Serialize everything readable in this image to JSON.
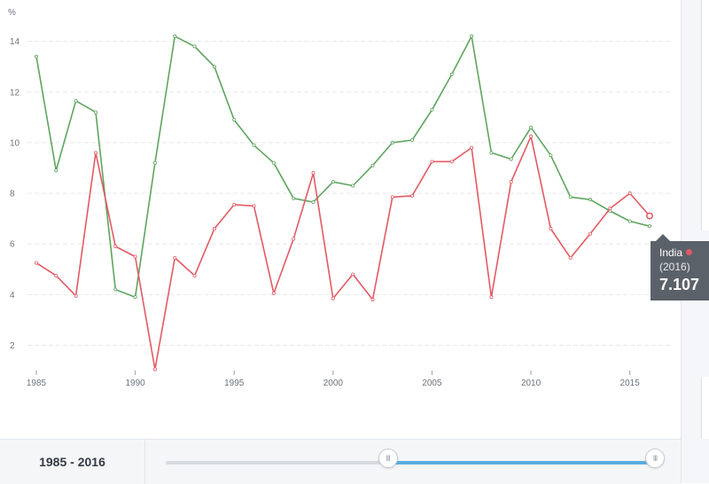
{
  "chart_data": {
    "type": "line",
    "ylabel": "%",
    "xlim": [
      1985,
      2016
    ],
    "ylim": [
      1,
      14.6
    ],
    "yticks": [
      2,
      4,
      6,
      8,
      10,
      12,
      14
    ],
    "xticks": [
      1985,
      1990,
      1995,
      2000,
      2005,
      2010,
      2015
    ],
    "grid": true,
    "x": [
      1985,
      1986,
      1987,
      1988,
      1989,
      1990,
      1991,
      1992,
      1993,
      1994,
      1995,
      1996,
      1997,
      1998,
      1999,
      2000,
      2001,
      2002,
      2003,
      2004,
      2005,
      2006,
      2007,
      2008,
      2009,
      2010,
      2011,
      2012,
      2013,
      2014,
      2015,
      2016
    ],
    "series": [
      {
        "color": "#5ea55e",
        "values": [
          13.4,
          8.9,
          11.65,
          11.2,
          4.2,
          3.9,
          9.2,
          14.2,
          13.8,
          13.0,
          10.9,
          9.9,
          9.2,
          7.8,
          7.65,
          8.45,
          8.3,
          9.1,
          10.0,
          10.1,
          11.3,
          12.7,
          14.2,
          9.6,
          9.35,
          10.6,
          9.5,
          7.85,
          7.75,
          7.3,
          6.9,
          6.7
        ]
      },
      {
        "name": "India",
        "color": "#e25a63",
        "values": [
          5.25,
          4.75,
          3.95,
          9.6,
          5.9,
          5.5,
          1.05,
          5.45,
          4.75,
          6.6,
          7.55,
          7.5,
          4.05,
          6.2,
          8.8,
          3.85,
          4.8,
          3.8,
          7.85,
          7.9,
          9.25,
          9.25,
          9.8,
          3.9,
          8.45,
          10.25,
          6.6,
          5.45,
          6.4,
          7.4,
          8.0,
          7.107
        ]
      }
    ]
  },
  "tooltip": {
    "country": "India",
    "year": "(2016)",
    "value": "7.107",
    "dot_color": "#e25a63"
  },
  "range": {
    "start": "1985",
    "separator": "-",
    "end": "2016",
    "min_year": 1985,
    "max_year": 2016,
    "handle_left_fraction": 0.454,
    "handle_right_fraction": 1.0,
    "handle_glyph": "III"
  }
}
